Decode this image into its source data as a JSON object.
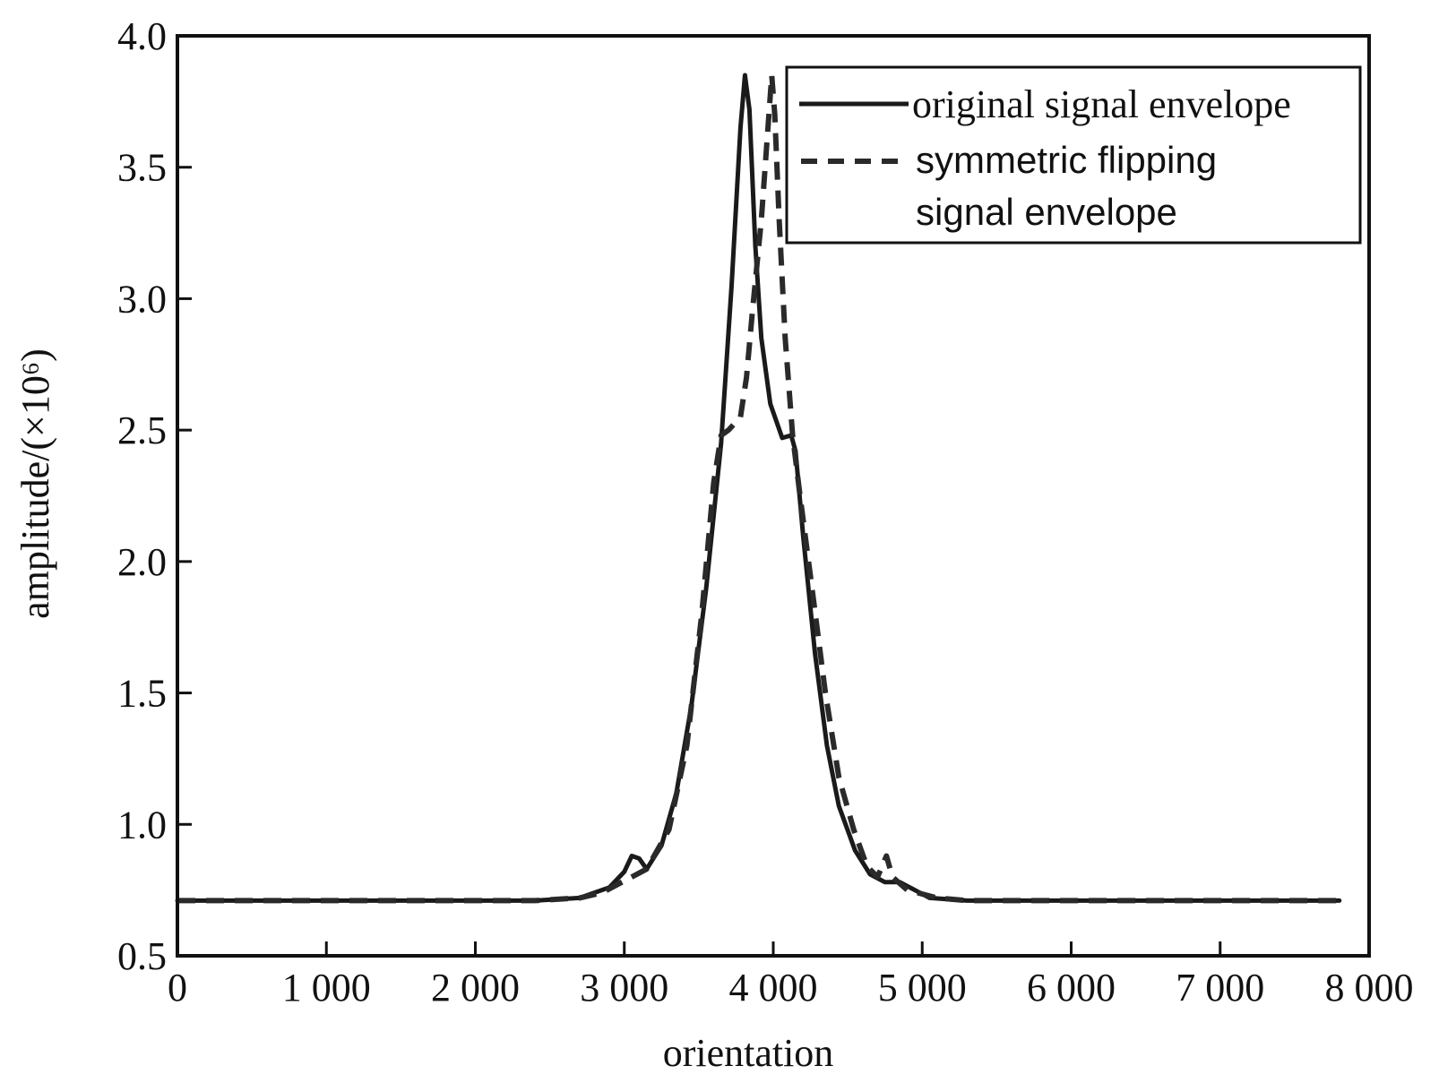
{
  "chart_data": {
    "type": "line",
    "xlabel": "orientation",
    "ylabel": "amplitude/(×10⁶)",
    "xlim": [
      0,
      8000
    ],
    "ylim": [
      0.5,
      4.0
    ],
    "x_ticks": [
      0,
      1000,
      2000,
      3000,
      4000,
      5000,
      6000,
      7000,
      8000
    ],
    "x_tick_labels": [
      "0",
      "1 000",
      "2 000",
      "3 000",
      "4 000",
      "5 000",
      "6 000",
      "7 000",
      "8 000"
    ],
    "y_ticks": [
      0.5,
      1.0,
      1.5,
      2.0,
      2.5,
      3.0,
      3.5,
      4.0
    ],
    "y_tick_labels": [
      "0.5",
      "1.0",
      "1.5",
      "2.0",
      "2.5",
      "3.0",
      "3.5",
      "4.0"
    ],
    "grid": false,
    "legend_position": "top-right",
    "series": [
      {
        "name": "original signal envelope",
        "style": "solid",
        "color": "#1a1a1a",
        "x": [
          0,
          500,
          1000,
          1500,
          2000,
          2400,
          2700,
          2900,
          3000,
          3050,
          3100,
          3150,
          3250,
          3350,
          3450,
          3550,
          3650,
          3720,
          3780,
          3810,
          3840,
          3880,
          3920,
          3980,
          4060,
          4120,
          4150,
          4200,
          4280,
          4360,
          4440,
          4550,
          4650,
          4750,
          4850,
          4950,
          5050,
          5300,
          6000,
          7000,
          7800
        ],
        "y": [
          0.71,
          0.71,
          0.71,
          0.71,
          0.71,
          0.71,
          0.72,
          0.76,
          0.82,
          0.88,
          0.87,
          0.83,
          0.92,
          1.12,
          1.45,
          1.9,
          2.45,
          3.05,
          3.65,
          3.85,
          3.72,
          3.2,
          2.85,
          2.6,
          2.47,
          2.48,
          2.42,
          2.1,
          1.65,
          1.3,
          1.07,
          0.9,
          0.81,
          0.78,
          0.78,
          0.75,
          0.72,
          0.71,
          0.71,
          0.71,
          0.71
        ]
      },
      {
        "name": "symmetric flipping signal envelope",
        "style": "dashed",
        "color": "#2a2a2a",
        "x": [
          0,
          500,
          1000,
          1500,
          2000,
          2400,
          2700,
          2850,
          2950,
          3050,
          3150,
          3300,
          3420,
          3520,
          3600,
          3650,
          3700,
          3780,
          3820,
          3860,
          3920,
          3990,
          4010,
          4040,
          4080,
          4130,
          4180,
          4260,
          4350,
          4440,
          4540,
          4630,
          4700,
          4760,
          4800,
          4900,
          5100,
          5300,
          6000,
          7000,
          7800
        ],
        "y": [
          0.71,
          0.71,
          0.71,
          0.71,
          0.71,
          0.71,
          0.72,
          0.74,
          0.77,
          0.8,
          0.83,
          0.98,
          1.3,
          1.8,
          2.3,
          2.48,
          2.5,
          2.55,
          2.7,
          2.95,
          3.3,
          3.85,
          3.7,
          3.3,
          2.85,
          2.48,
          2.25,
          1.9,
          1.5,
          1.18,
          0.98,
          0.84,
          0.8,
          0.88,
          0.8,
          0.75,
          0.72,
          0.71,
          0.71,
          0.71,
          0.71
        ]
      }
    ]
  }
}
